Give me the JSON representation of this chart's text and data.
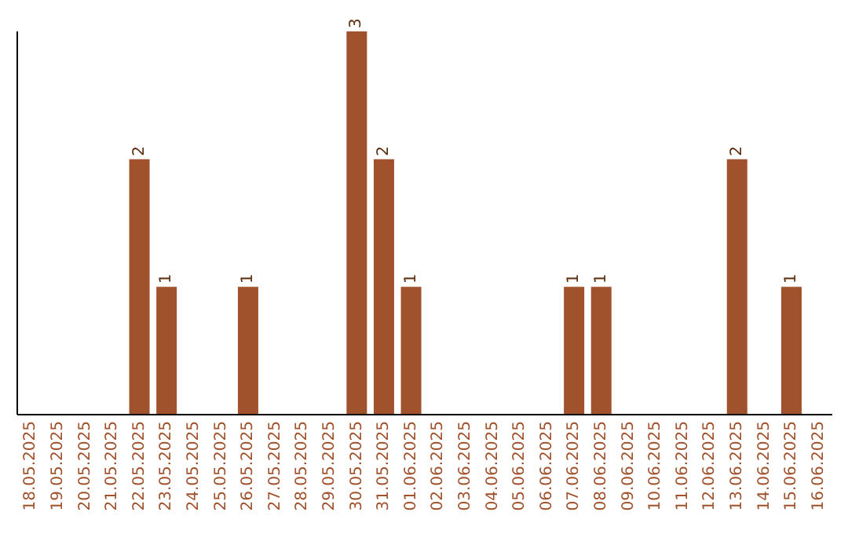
{
  "chart_data": {
    "type": "bar",
    "categories": [
      "18.05.2025",
      "19.05.2025",
      "20.05.2025",
      "21.05.2025",
      "22.05.2025",
      "23.05.2025",
      "24.05.2025",
      "25.05.2025",
      "26.05.2025",
      "27.05.2025",
      "28.05.2025",
      "29.05.2025",
      "30.05.2025",
      "31.05.2025",
      "01.06.2025",
      "02.06.2025",
      "03.06.2025",
      "04.06.2025",
      "05.06.2025",
      "06.06.2025",
      "07.06.2025",
      "08.06.2025",
      "09.06.2025",
      "10.06.2025",
      "11.06.2025",
      "12.06.2025",
      "13.06.2025",
      "14.06.2025",
      "15.06.2025",
      "16.06.2025"
    ],
    "values": [
      0,
      0,
      0,
      0,
      2,
      1,
      0,
      0,
      1,
      0,
      0,
      0,
      3,
      2,
      1,
      0,
      0,
      0,
      0,
      0,
      1,
      1,
      0,
      0,
      0,
      0,
      2,
      0,
      1,
      0
    ],
    "value_labels": [
      null,
      null,
      null,
      null,
      "2",
      "1",
      null,
      null,
      "1",
      null,
      null,
      null,
      "3",
      "2",
      "1",
      null,
      null,
      null,
      null,
      null,
      "1",
      "1",
      null,
      null,
      null,
      null,
      "2",
      null,
      "1",
      null
    ],
    "color": "#a0522d",
    "grid": false,
    "legend": false
  }
}
